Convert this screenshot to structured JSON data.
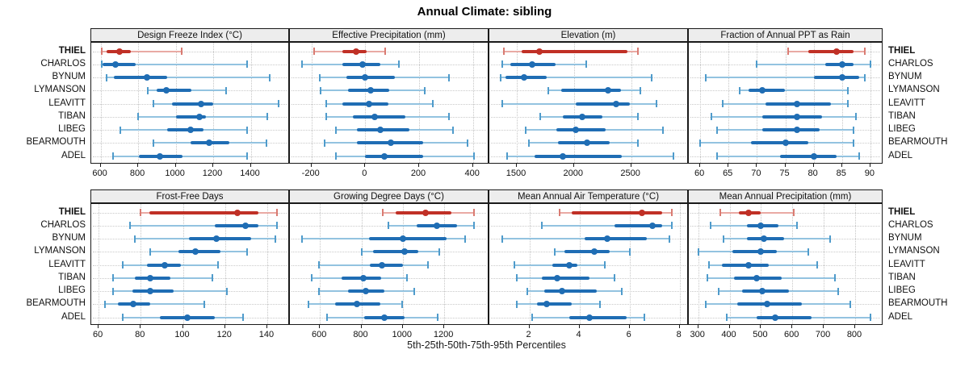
{
  "title": "Annual Climate: sibling",
  "footer": "5th-25th-50th-75th-95th Percentiles",
  "colors": {
    "normal_dark": "#1f6db4",
    "normal_light": "#93c3e0",
    "normal_cap": "#4f9bcb",
    "highlight_dark": "#c03026",
    "highlight_light": "#e9aaa4",
    "highlight_cap": "#d97b72",
    "grid": "#c8c8c8",
    "strip_bg": "#ededed",
    "border": "#1a1a1a"
  },
  "chart_data": {
    "type": "dotplot",
    "subtype": "percentile-intervals",
    "percentiles": [
      5,
      25,
      50,
      75,
      95
    ],
    "categories": [
      "THIEL",
      "CHARLOS",
      "BYNUM",
      "LYMANSON",
      "LEAVITT",
      "TIBAN",
      "LIBEG",
      "BEARMOUTH",
      "ADEL"
    ],
    "highlight_category": "THIEL",
    "legend_position": "none",
    "grid": "dotted",
    "panels": [
      {
        "title": "Design Freeze Index (°C)",
        "xticks": [
          600,
          800,
          1000,
          1200,
          1400
        ],
        "xlim": [
          550,
          1600
        ],
        "values": [
          [
            605,
            630,
            700,
            760,
            1030
          ],
          [
            605,
            612,
            680,
            785,
            1380
          ],
          [
            630,
            670,
            845,
            955,
            1500
          ],
          [
            850,
            900,
            950,
            1085,
            1270
          ],
          [
            880,
            980,
            1135,
            1200,
            1550
          ],
          [
            800,
            1000,
            1125,
            1160,
            1490
          ],
          [
            705,
            955,
            1080,
            1150,
            1380
          ],
          [
            880,
            1080,
            1180,
            1285,
            1485
          ],
          [
            665,
            805,
            915,
            1035,
            1380
          ]
        ]
      },
      {
        "title": "Effective Precipitation (mm)",
        "xticks": [
          -200,
          0,
          200,
          400
        ],
        "xlim": [
          -280,
          455
        ],
        "values": [
          [
            -190,
            -85,
            -35,
            5,
            75
          ],
          [
            -235,
            -85,
            -10,
            55,
            125
          ],
          [
            -170,
            -70,
            0,
            110,
            310
          ],
          [
            -165,
            -65,
            20,
            90,
            220
          ],
          [
            -145,
            -85,
            15,
            85,
            250
          ],
          [
            -145,
            -45,
            35,
            150,
            310
          ],
          [
            -110,
            -30,
            55,
            165,
            325
          ],
          [
            -150,
            -30,
            95,
            215,
            380
          ],
          [
            -110,
            0,
            70,
            215,
            405
          ]
        ]
      },
      {
        "title": "Elevation (m)",
        "xticks": [
          1500,
          2000,
          2500
        ],
        "xlim": [
          1260,
          2990
        ],
        "values": [
          [
            1390,
            1540,
            1695,
            2465,
            2560
          ],
          [
            1375,
            1445,
            1635,
            1840,
            2105
          ],
          [
            1360,
            1400,
            1565,
            1760,
            2680
          ],
          [
            1775,
            1890,
            2295,
            2410,
            2580
          ],
          [
            1375,
            2015,
            2370,
            2490,
            2720
          ],
          [
            1705,
            1905,
            2070,
            2250,
            2560
          ],
          [
            1575,
            1845,
            2015,
            2280,
            2780
          ],
          [
            1605,
            1860,
            2115,
            2310,
            2560
          ],
          [
            1415,
            1655,
            1905,
            2420,
            2870
          ]
        ]
      },
      {
        "title": "Fraction of Annual PPT as Rain",
        "xticks": [
          60,
          65,
          70,
          75,
          80,
          85,
          90
        ],
        "xlim": [
          58,
          92
        ],
        "values": [
          [
            75.5,
            79,
            84,
            87,
            89
          ],
          [
            70,
            82,
            85,
            87,
            90
          ],
          [
            61,
            80,
            85,
            88,
            89
          ],
          [
            67,
            68.5,
            71,
            75,
            86
          ],
          [
            64,
            71.5,
            77,
            83,
            86
          ],
          [
            62,
            71,
            77,
            81.5,
            87.5
          ],
          [
            63,
            71,
            77,
            81,
            87
          ],
          [
            60,
            69,
            75,
            79,
            87
          ],
          [
            63,
            74,
            80,
            84,
            88
          ]
        ]
      },
      {
        "title": "Frost-Free Days",
        "xticks": [
          60,
          80,
          100,
          120,
          140
        ],
        "xlim": [
          56.5,
          150
        ],
        "values": [
          [
            80,
            84,
            126,
            136,
            144.5
          ],
          [
            75,
            115,
            129.5,
            136,
            144.5
          ],
          [
            77,
            103,
            116,
            132.5,
            144
          ],
          [
            84.5,
            98,
            106,
            118,
            130.5
          ],
          [
            71.5,
            83,
            91.5,
            99,
            116.5
          ],
          [
            67,
            77,
            84.5,
            94,
            114
          ],
          [
            67,
            76,
            84.5,
            95.5,
            121
          ],
          [
            63,
            69,
            76.5,
            84.5,
            110
          ],
          [
            71.5,
            89,
            102,
            115,
            128.5
          ]
        ]
      },
      {
        "title": "Growing Degree Days (°C)",
        "xticks": [
          600,
          800,
          1000,
          1200
        ],
        "xlim": [
          455,
          1410
        ],
        "values": [
          [
            905,
            965,
            1110,
            1235,
            1345
          ],
          [
            930,
            1065,
            1165,
            1260,
            1345
          ],
          [
            515,
            835,
            1000,
            1210,
            1300
          ],
          [
            800,
            855,
            1010,
            1075,
            1175
          ],
          [
            595,
            840,
            900,
            1000,
            1120
          ],
          [
            560,
            705,
            810,
            895,
            1020
          ],
          [
            595,
            735,
            820,
            910,
            1055
          ],
          [
            545,
            675,
            780,
            890,
            995
          ],
          [
            635,
            815,
            910,
            1010,
            1170
          ]
        ]
      },
      {
        "title": "Mean Annual Air Temperature (°C)",
        "xticks": [
          2,
          4,
          6,
          8
        ],
        "xlim": [
          0.4,
          8.3
        ],
        "values": [
          [
            3.2,
            3.7,
            6.5,
            7.3,
            7.7
          ],
          [
            2.5,
            5.4,
            6.9,
            7.3,
            7.7
          ],
          [
            0.9,
            4.2,
            5.1,
            6.7,
            7.6
          ],
          [
            3.0,
            3.4,
            4.6,
            5.2,
            6.0
          ],
          [
            1.4,
            2.9,
            3.6,
            3.9,
            5.0
          ],
          [
            1.5,
            2.5,
            3.1,
            4.4,
            5.4
          ],
          [
            1.9,
            2.6,
            3.3,
            4.7,
            5.7
          ],
          [
            1.5,
            2.3,
            2.7,
            3.7,
            4.8
          ],
          [
            2.1,
            3.6,
            4.4,
            5.9,
            6.6
          ]
        ]
      },
      {
        "title": "Mean Annual Precipitation (mm)",
        "xticks": [
          300,
          400,
          500,
          600,
          700,
          800
        ],
        "xlim": [
          270,
          885
        ],
        "values": [
          [
            370,
            430,
            460,
            500,
            605
          ],
          [
            340,
            455,
            500,
            555,
            615
          ],
          [
            380,
            455,
            510,
            575,
            720
          ],
          [
            300,
            410,
            500,
            550,
            650
          ],
          [
            335,
            375,
            460,
            525,
            680
          ],
          [
            330,
            415,
            485,
            565,
            735
          ],
          [
            365,
            440,
            505,
            590,
            745
          ],
          [
            325,
            425,
            520,
            630,
            785
          ],
          [
            390,
            485,
            545,
            660,
            850
          ]
        ]
      }
    ]
  }
}
